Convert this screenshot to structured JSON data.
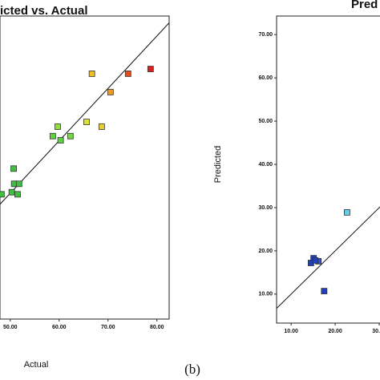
{
  "caption": "(b)",
  "chart_data": [
    {
      "type": "scatter",
      "title": "icted vs. Actual",
      "x_label": "Actual",
      "x": [
        78.7,
        74.1,
        66.7,
        70.5,
        65.6,
        68.7,
        59.7,
        58.7,
        62.3,
        60.3,
        50.7,
        50.8,
        51.8,
        50.3,
        51.5,
        48.2
      ],
      "y": [
        73.7,
        72.8,
        72.8,
        69.3,
        63.6,
        62.7,
        62.7,
        60.9,
        60.9,
        60.1,
        54.7,
        51.8,
        51.8,
        50.2,
        49.8,
        49.8
      ],
      "colors": [
        "#e0201a",
        "#e84a1a",
        "#f0c020",
        "#f09a20",
        "#e0e030",
        "#e8d030",
        "#90e040",
        "#60d040",
        "#70d840",
        "#60d040",
        "#40c040",
        "#40c040",
        "#40c040",
        "#40c040",
        "#40c040",
        "#40c040"
      ],
      "xlim": [
        47.9,
        82.5
      ],
      "ylim": [
        26,
        83.8
      ],
      "xticks": [
        {
          "value": 50,
          "label": "50.00"
        },
        {
          "value": 60,
          "label": "60.00"
        },
        {
          "value": 70,
          "label": "70.00"
        },
        {
          "value": 80,
          "label": "80.00"
        }
      ]
    },
    {
      "type": "scatter",
      "title": "Pred",
      "y_label": "Predicted",
      "x": [
        22.7,
        15.1,
        14.5,
        16.2,
        17.5,
        15.5
      ],
      "y": [
        28.9,
        18.3,
        17.2,
        17.6,
        10.7,
        17.8
      ],
      "colors": [
        "#60d0e8",
        "#2040c0",
        "#2040c0",
        "#3050d0",
        "#2040c0",
        "#2040c0"
      ],
      "xlim": [
        6.7,
        40
      ],
      "ylim": [
        3.3,
        74.3
      ],
      "xticks": [
        {
          "value": 10,
          "label": "10.00"
        },
        {
          "value": 20,
          "label": "20.00"
        },
        {
          "value": 30,
          "label": "30.00"
        }
      ],
      "yticks": [
        {
          "value": 10,
          "label": "10.00"
        },
        {
          "value": 20,
          "label": "20.00"
        },
        {
          "value": 30,
          "label": "30.00"
        },
        {
          "value": 40,
          "label": "40.00"
        },
        {
          "value": 50,
          "label": "50.00"
        },
        {
          "value": 60,
          "label": "60.00"
        },
        {
          "value": 70,
          "label": "70.00"
        }
      ]
    }
  ]
}
